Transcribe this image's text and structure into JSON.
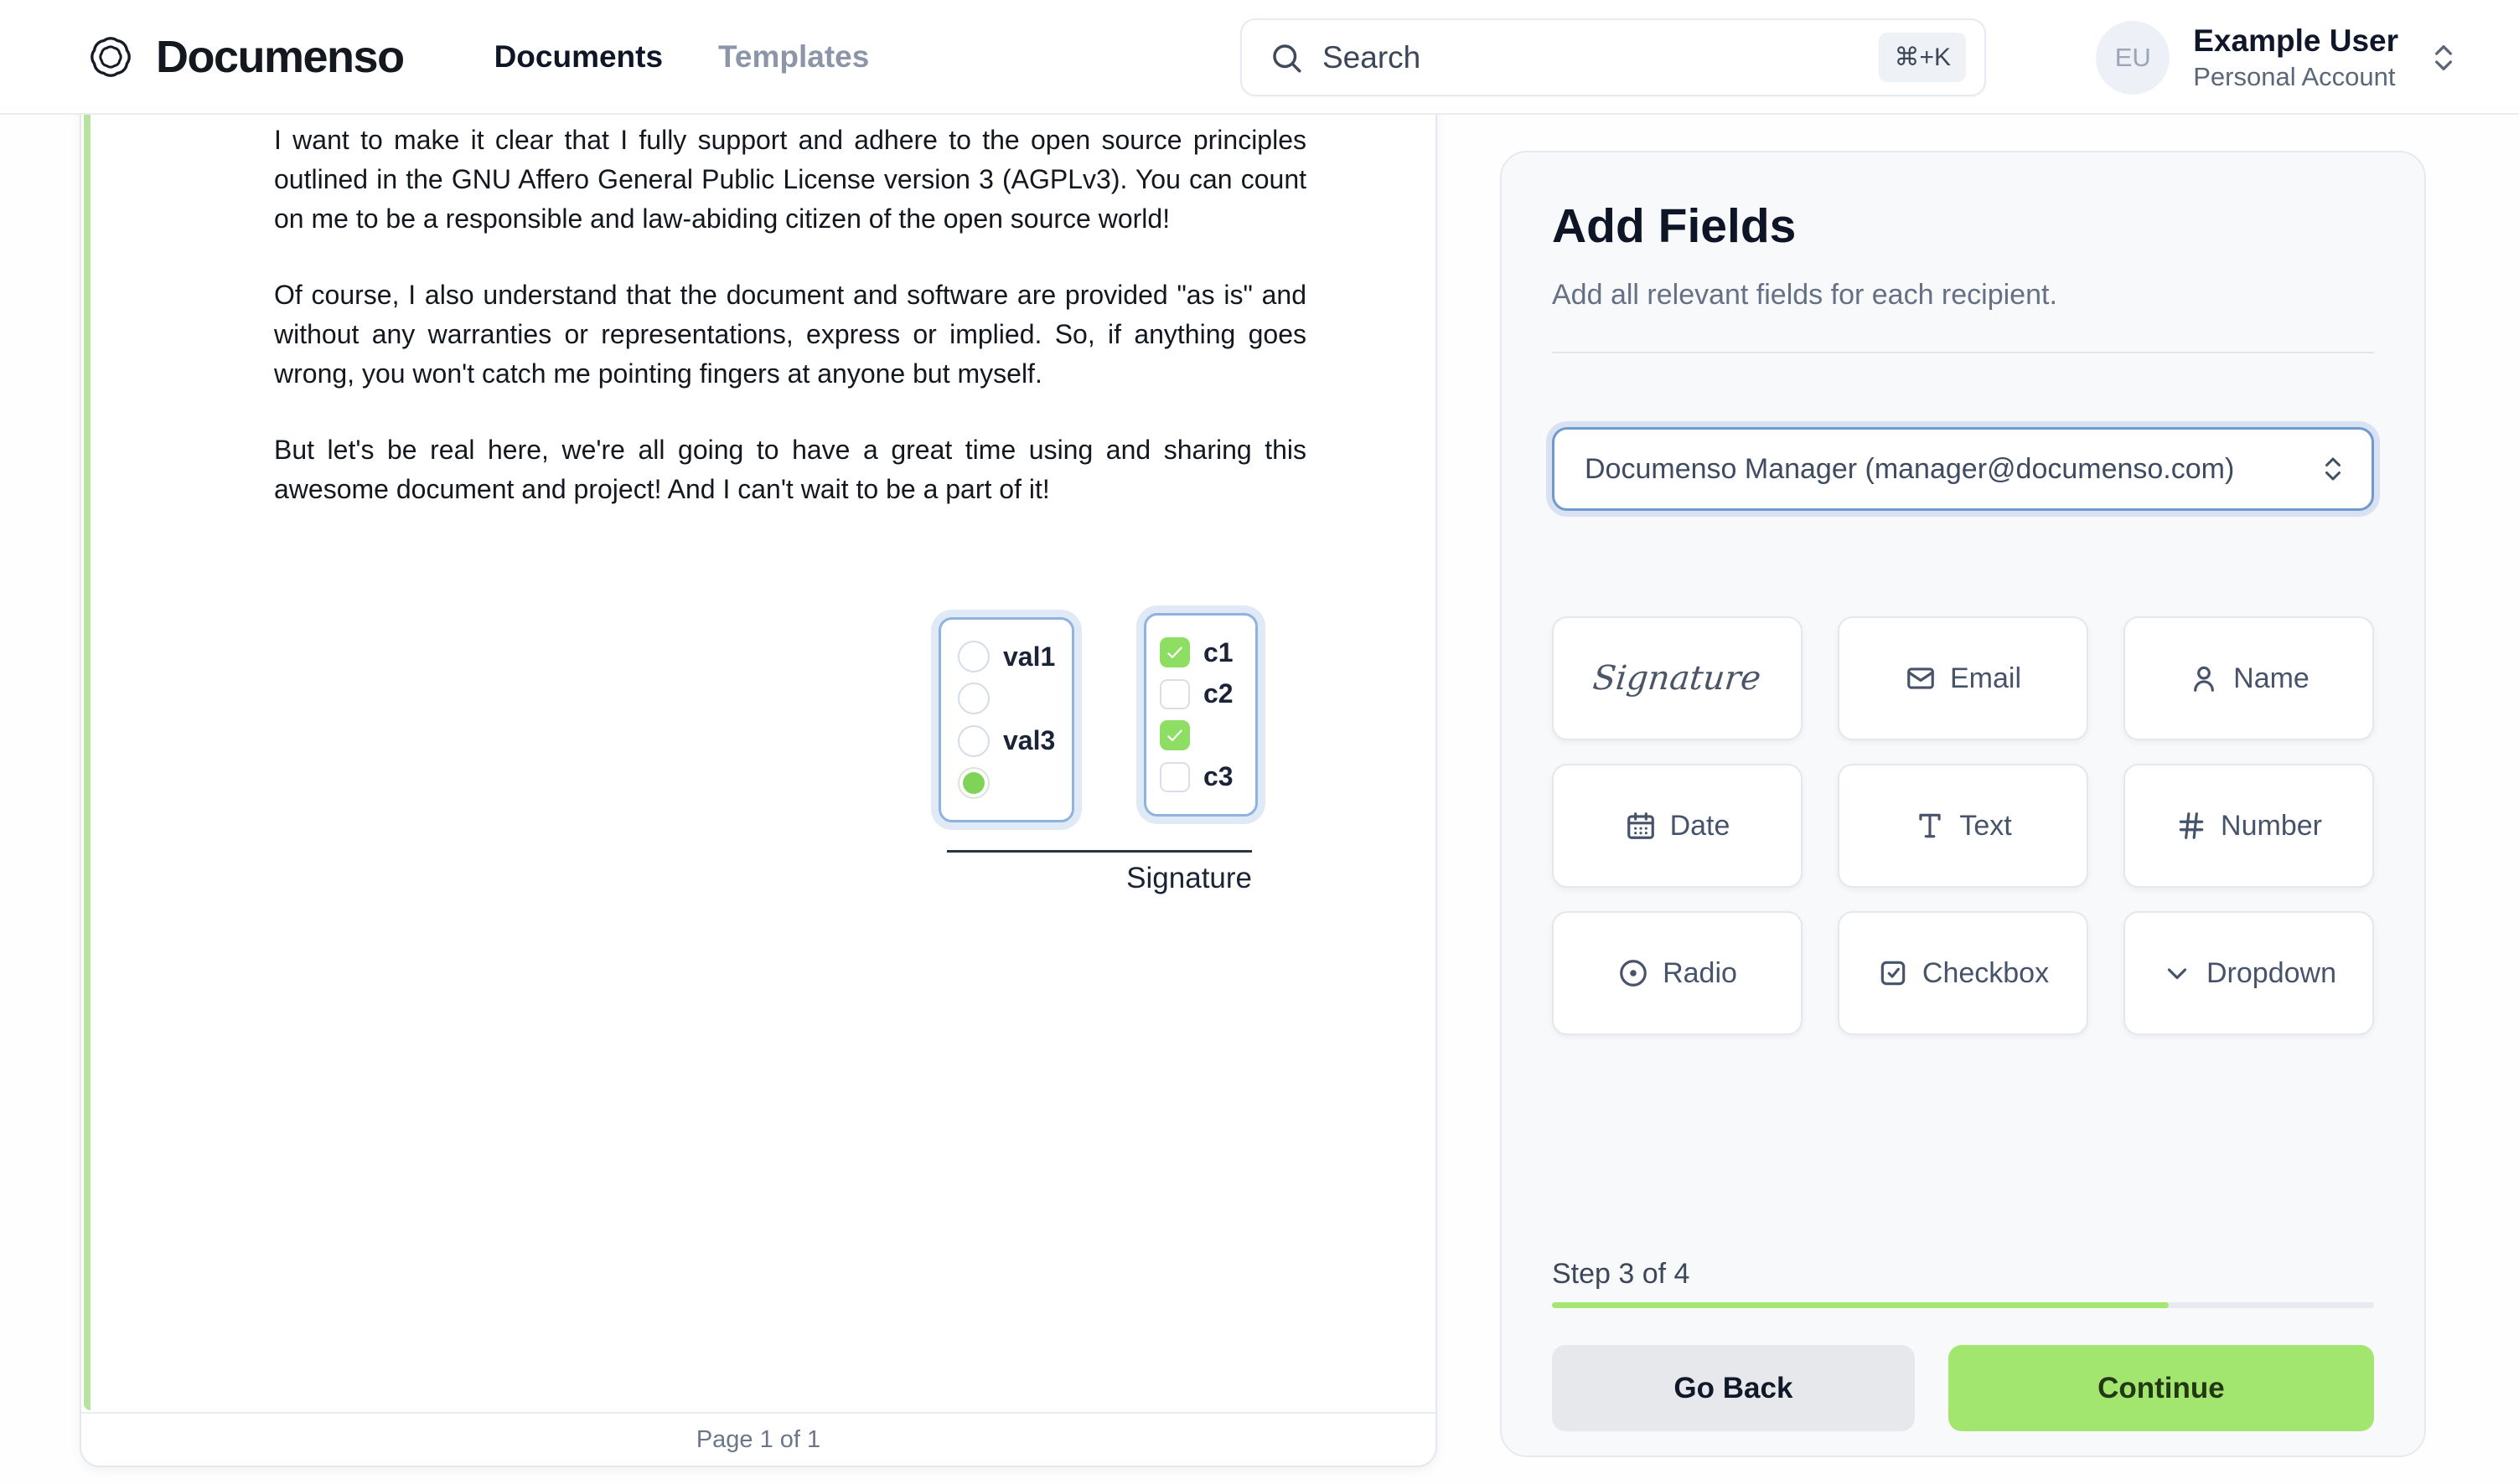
{
  "nav": {
    "brand": "Documenso",
    "items": [
      {
        "label": "Documents",
        "active": true
      },
      {
        "label": "Templates",
        "active": false
      }
    ],
    "search": {
      "placeholder": "Search",
      "shortcut": "⌘+K"
    },
    "user": {
      "initials": "EU",
      "name": "Example User",
      "account_type": "Personal Account"
    }
  },
  "document": {
    "paragraphs": [
      "I want to make it clear that I fully support and adhere to the open source principles outlined in the GNU Affero General Public License version 3 (AGPLv3). You can count on me to be a responsible and law-abiding citizen of the open source world!",
      "Of course, I also understand that the document and software are provided \"as is\" and without any warranties or representations, express or implied. So, if anything goes wrong, you won't catch me pointing fingers at anyone but myself.",
      "But let's be real here, we're all going to have a great time using and sharing this awesome document and project! And I can't wait to be a part of it!"
    ],
    "radio_group": {
      "options": [
        {
          "label": "val1",
          "selected": false
        },
        {
          "label": "",
          "selected": false
        },
        {
          "label": "val3",
          "selected": false
        },
        {
          "label": "",
          "selected": true
        }
      ]
    },
    "checkbox_group": {
      "options": [
        {
          "label": "c1",
          "checked": true
        },
        {
          "label": "c2",
          "checked": false
        },
        {
          "label": "",
          "checked": true
        },
        {
          "label": "c3",
          "checked": false
        }
      ]
    },
    "signature_label": "Signature",
    "pagination": "Page 1 of 1"
  },
  "panel": {
    "title": "Add Fields",
    "subtitle": "Add all relevant fields for each recipient.",
    "recipient_selector": {
      "value": "Documenso Manager (manager@documenso.com)"
    },
    "field_buttons": [
      {
        "label": "Signature",
        "icon": "signature-script"
      },
      {
        "label": "Email",
        "icon": "envelope"
      },
      {
        "label": "Name",
        "icon": "user"
      },
      {
        "label": "Date",
        "icon": "calendar"
      },
      {
        "label": "Text",
        "icon": "type"
      },
      {
        "label": "Number",
        "icon": "hash"
      },
      {
        "label": "Radio",
        "icon": "circle-dot"
      },
      {
        "label": "Checkbox",
        "icon": "square-check"
      },
      {
        "label": "Dropdown",
        "icon": "chevron-down"
      }
    ],
    "step_indicator": "Step 3 of 4",
    "progress_percent": 75,
    "go_back_label": "Go Back",
    "continue_label": "Continue"
  },
  "colors": {
    "accent_green": "#a3e66f",
    "check_green": "#8ede64",
    "focus_blue": "#7099cf",
    "group_ring_blue": "#8fb3df"
  }
}
